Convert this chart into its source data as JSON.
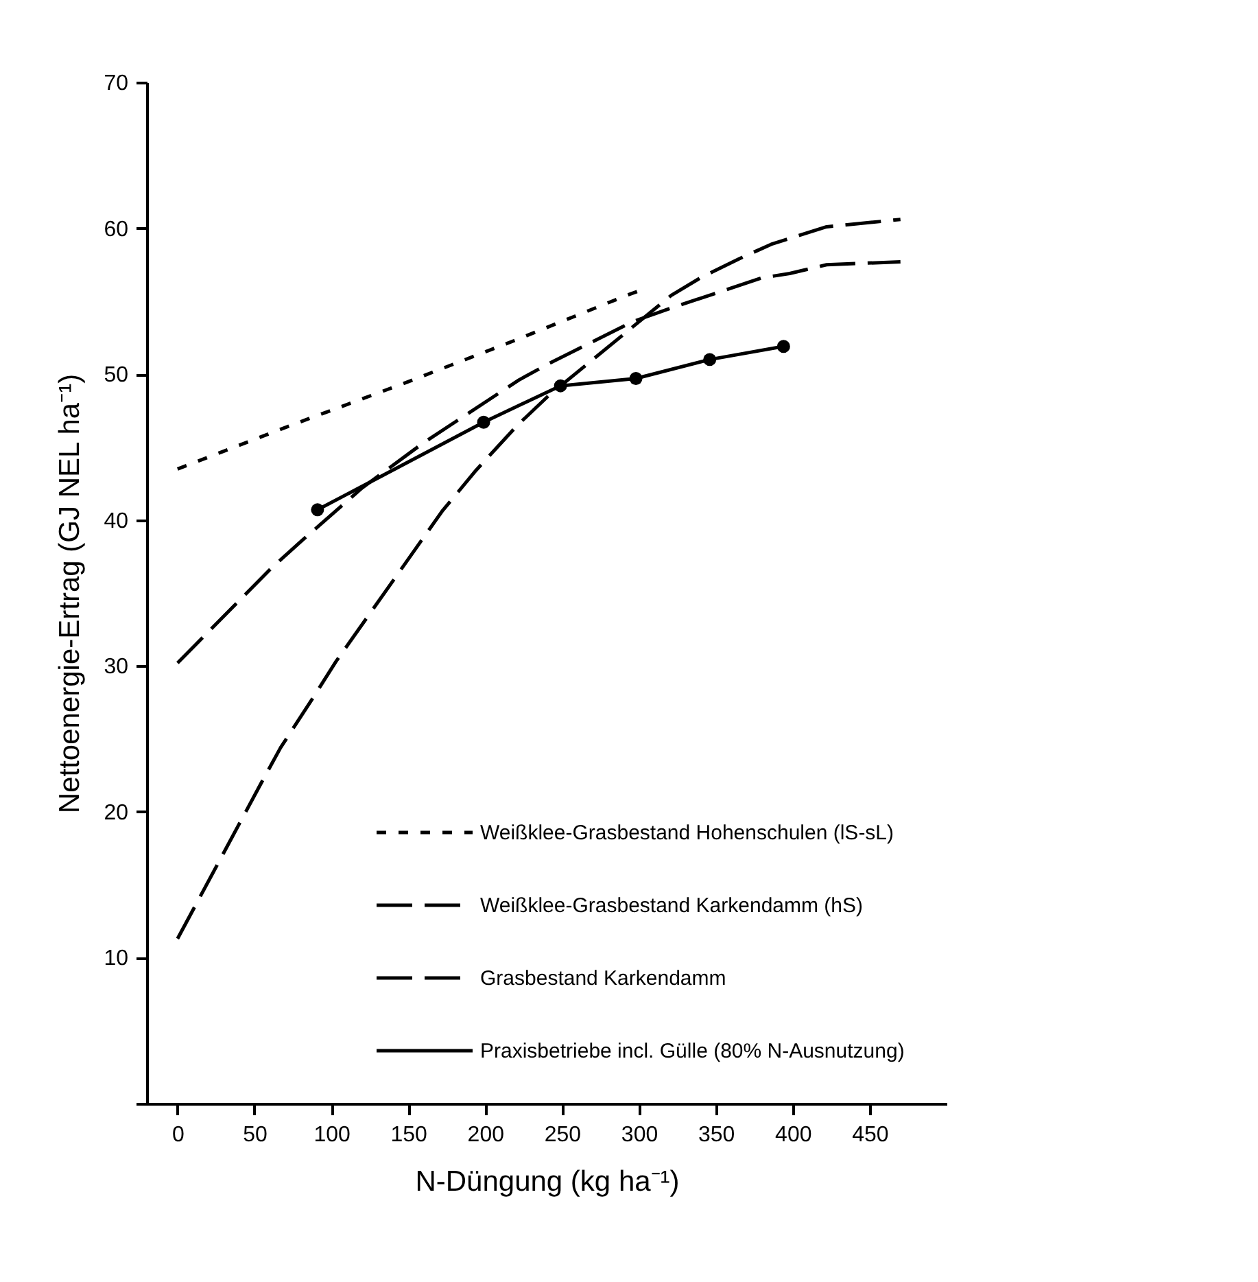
{
  "chart_data": {
    "type": "line",
    "xlabel": "N-Düngung (kg ha⁻¹)",
    "ylabel": "Nettoenergie-Ertrag (GJ NEL ha⁻¹)",
    "xlim": [
      -20,
      500
    ],
    "xticks": [
      0,
      50,
      100,
      150,
      200,
      250,
      300,
      350,
      400,
      450
    ],
    "ylim": [
      0,
      70
    ],
    "yticks": [
      {
        "value": 0,
        "label": null
      },
      10,
      20,
      30,
      40,
      50,
      60,
      70
    ],
    "grid": false,
    "legend": "bottom right",
    "series": [
      {
        "name": "Weißklee-Grasbestand Hohenschulen (lS-sL)",
        "color": "#000000",
        "line_style": "dotted",
        "marker": "none",
        "x": [
          0,
          74,
          148,
          219,
          292,
          300
        ],
        "values": [
          43.5,
          46.5,
          49.4,
          52.3,
          55.4,
          55.7
        ]
      },
      {
        "name": "Weißklee-Grasbestand Karkendamm (hS)",
        "color": "#000000",
        "line_style": "dashed",
        "marker": "none",
        "x": [
          0,
          61,
          81,
          120,
          160,
          222,
          241,
          296,
          320,
          380,
          398,
          422,
          470
        ],
        "values": [
          30.2,
          36.7,
          38.6,
          42.2,
          45.3,
          49.6,
          50.7,
          53.6,
          54.5,
          56.6,
          56.9,
          57.5,
          57.7
        ]
      },
      {
        "name": "Grasbestand Karkendamm",
        "color": "#000000",
        "line_style": "dashed",
        "marker": "none",
        "x": [
          0,
          53,
          67,
          88,
          103,
          172,
          194,
          221,
          241,
          321,
          340,
          365,
          386,
          422,
          470
        ],
        "values": [
          11.3,
          21.7,
          24.4,
          27.8,
          30.3,
          40.6,
          43.4,
          46.5,
          48.5,
          55.4,
          56.6,
          57.9,
          58.9,
          60.1,
          60.6
        ]
      },
      {
        "name": "Praxisbetriebe incl. Gülle (80% N-Ausnutzung)",
        "color": "#000000",
        "line_style": "solid",
        "marker": "circle",
        "x": [
          91,
          199,
          249,
          298,
          346,
          394
        ],
        "values": [
          40.7,
          46.7,
          49.2,
          49.7,
          51.0,
          51.9
        ]
      }
    ]
  }
}
